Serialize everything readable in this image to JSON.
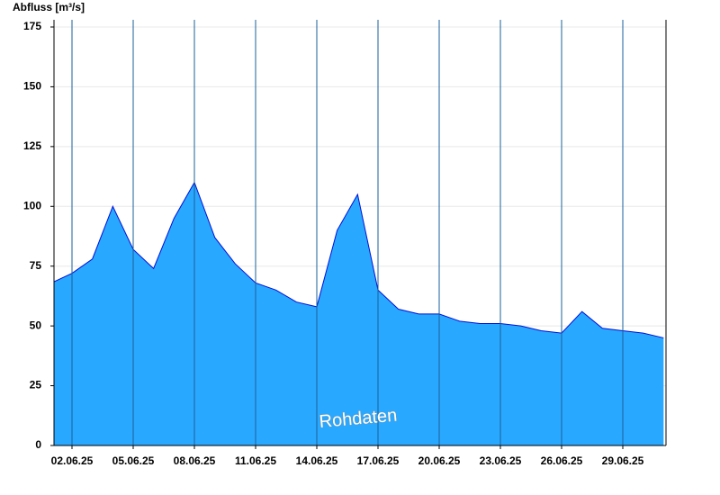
{
  "chart_data": {
    "type": "area",
    "y_label": "Abfluss [m³/s]",
    "watermark": "Rohdaten",
    "x": [
      "01.06.25",
      "02.06.25",
      "03.06.25",
      "04.06.25",
      "05.06.25",
      "06.06.25",
      "07.06.25",
      "08.06.25",
      "09.06.25",
      "10.06.25",
      "11.06.25",
      "12.06.25",
      "13.06.25",
      "14.06.25",
      "15.06.25",
      "16.06.25",
      "17.06.25",
      "18.06.25",
      "19.06.25",
      "20.06.25",
      "21.06.25",
      "22.06.25",
      "23.06.25",
      "24.06.25",
      "25.06.25",
      "26.06.25",
      "27.06.25",
      "28.06.25",
      "29.06.25",
      "30.06.25",
      "01.07.25"
    ],
    "values": [
      68,
      72,
      78,
      100,
      82,
      74,
      95,
      110,
      87,
      76,
      68,
      65,
      60,
      58,
      90,
      105,
      65,
      57,
      55,
      55,
      52,
      51,
      51,
      50,
      48,
      47,
      56,
      49,
      48,
      47,
      45
    ],
    "color": "#29a8ff",
    "line_color": "#0010d8",
    "xticks": [
      "02.06.25",
      "05.06.25",
      "08.06.25",
      "11.06.25",
      "14.06.25",
      "17.06.25",
      "20.06.25",
      "23.06.25",
      "26.06.25",
      "29.06.25"
    ],
    "ylim": [
      0,
      175
    ],
    "yticks": [
      0,
      25,
      50,
      75,
      100,
      125,
      150,
      175
    ],
    "grid": true
  }
}
